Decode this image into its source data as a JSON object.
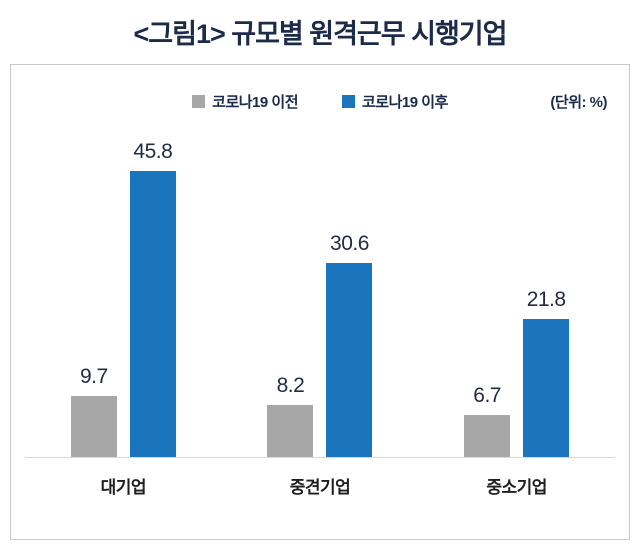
{
  "title": "<그림1> 규모별 원격근무 시행기업",
  "legend": {
    "before_label": "코로나19 이전",
    "after_label": "코로나19 이후",
    "unit_label": "(단위: %)"
  },
  "colors": {
    "before": "#a7a7a7",
    "after": "#1b75bc",
    "title": "#1c2b4a",
    "value_text": "#232c45",
    "axis_line": "#d9d9d9",
    "box_border": "#c9c9c9"
  },
  "chart_data": {
    "type": "bar",
    "categories": [
      "대기업",
      "중견기업",
      "중소기업"
    ],
    "series": [
      {
        "name": "코로나19 이전",
        "color": "#a7a7a7",
        "values": [
          9.7,
          8.2,
          6.7
        ]
      },
      {
        "name": "코로나19 이후",
        "color": "#1b75bc",
        "values": [
          45.8,
          30.6,
          21.8
        ]
      }
    ],
    "title": "<그림1> 규모별 원격근무 시행기업",
    "xlabel": "",
    "ylabel": "",
    "unit": "(단위: %)",
    "ylim": [
      0,
      50
    ],
    "grid": false,
    "legend_position": "top",
    "value_labels": true
  }
}
